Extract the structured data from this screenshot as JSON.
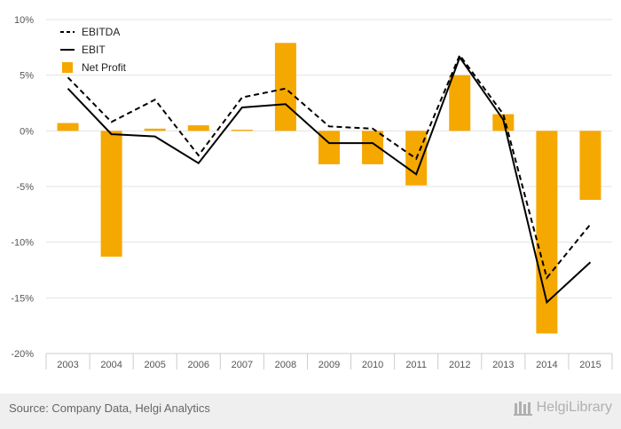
{
  "chart_data": {
    "type": "bar",
    "categories": [
      "2003",
      "2004",
      "2005",
      "2006",
      "2007",
      "2008",
      "2009",
      "2010",
      "2011",
      "2012",
      "2013",
      "2014",
      "2015"
    ],
    "series": [
      {
        "name": "EBITDA",
        "kind": "line",
        "style": "dashed",
        "color": "#000000",
        "values": [
          4.8,
          0.8,
          2.8,
          -2.2,
          3.0,
          3.8,
          0.4,
          0.2,
          -2.5,
          6.8,
          1.5,
          -13.2,
          -8.4
        ]
      },
      {
        "name": "EBIT",
        "kind": "line",
        "style": "solid",
        "color": "#000000",
        "values": [
          3.8,
          -0.3,
          -0.5,
          -2.9,
          2.1,
          2.4,
          -1.1,
          -1.1,
          -3.9,
          6.6,
          1.0,
          -15.4,
          -11.8
        ]
      },
      {
        "name": "Net Profit",
        "kind": "bar",
        "color": "#f5a800",
        "values": [
          0.7,
          -11.3,
          0.2,
          0.5,
          0.1,
          7.9,
          -3.0,
          -3.0,
          -4.9,
          5.0,
          1.5,
          -18.2,
          -6.2
        ]
      }
    ],
    "y_ticks": [
      "10%",
      "5%",
      "0%",
      "-5%",
      "-10%",
      "-15%",
      "-20%"
    ],
    "ylim": [
      -20,
      10
    ],
    "grid": "horizontal",
    "legend_position": "top-left"
  },
  "footer": {
    "source": "Source: Company Data, Helgi Analytics",
    "brand": "HelgiLibrary"
  }
}
